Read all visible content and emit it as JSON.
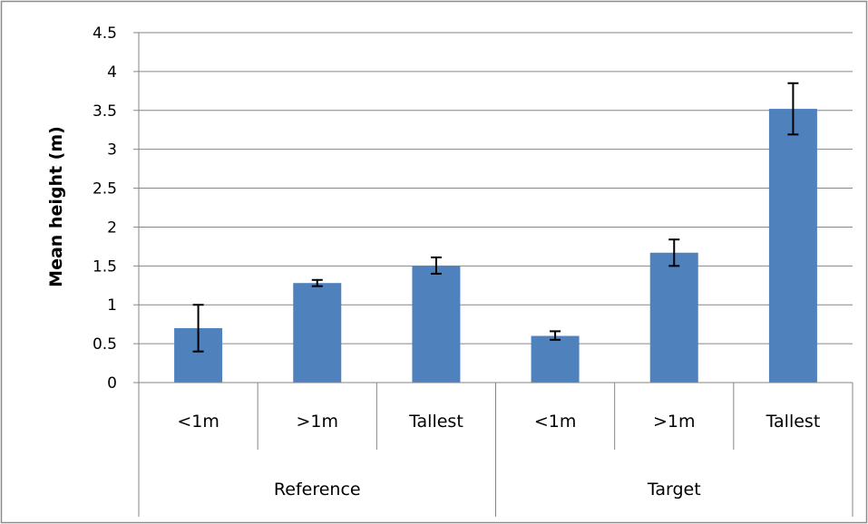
{
  "chart_data": {
    "type": "bar",
    "title": "",
    "xlabel": "",
    "ylabel": "Mean height (m)",
    "ylim": [
      0,
      4.5
    ],
    "yticks": [
      "0",
      "0.5",
      "1",
      "1.5",
      "2",
      "2.5",
      "3",
      "3.5",
      "4",
      "4.5"
    ],
    "grid": true,
    "legend": "none",
    "groups": [
      {
        "label": "Reference",
        "categories": [
          "<1m",
          ">1m",
          "Tallest"
        ]
      },
      {
        "label": "Target",
        "categories": [
          "<1m",
          ">1m",
          "Tallest"
        ]
      }
    ],
    "categories": [
      "<1m",
      ">1m",
      "Tallest",
      "<1m",
      ">1m",
      "Tallest"
    ],
    "values": [
      0.7,
      1.28,
      1.5,
      0.6,
      1.67,
      3.52
    ],
    "error_low": [
      0.4,
      1.24,
      1.4,
      0.55,
      1.5,
      3.19
    ],
    "error_high": [
      1.0,
      1.32,
      1.61,
      0.66,
      1.84,
      3.85
    ],
    "colors": {
      "bar": "#4f81bd",
      "grid": "#868686",
      "axis": "#868686",
      "error": "#000000",
      "frame": "#8c8c8c"
    }
  }
}
